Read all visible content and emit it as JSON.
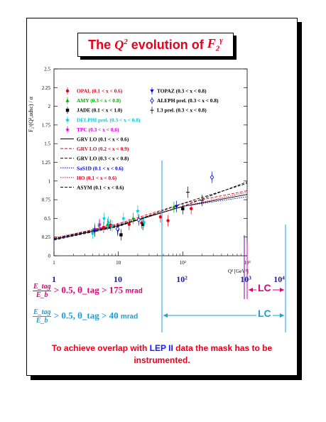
{
  "title": {
    "prefix": "The",
    "q": "Q",
    "q_exp": "2",
    "mid": "evolution of",
    "f": "F",
    "f_sub": "2",
    "f_sup": "γ"
  },
  "axis": {
    "ylabel": "F₂ᵞ(Q²,udsc) / α",
    "xlabel": "Q² [GeV²]"
  },
  "legend": [
    {
      "label": "OPAL (0.1 < x < 0.6)",
      "color": "#e8001c",
      "marker": "circle"
    },
    {
      "label": "AMY (0.3 < x < 0.8)",
      "color": "#00b000",
      "marker": "triangle"
    },
    {
      "label": "JADE (0.1 < x < 1.0)",
      "color": "#000000",
      "marker": "square"
    },
    {
      "label": "DELPHI prel. (0.3 < x < 0.8)",
      "color": "#00c8d8",
      "marker": "star"
    },
    {
      "label": "TPC (0.3 < x < 0.6)",
      "color": "#e000e0",
      "marker": "star"
    },
    {
      "label": "TOPAZ (0.3 < x < 0.8)",
      "color": "#0000cc",
      "marker": "down-triangle"
    },
    {
      "label": "ALEPH prel. (0.3 < x < 0.8)",
      "color": "#0000cc",
      "marker": "diamond"
    },
    {
      "label": "L3 prel. (0.3 < x < 0.8)",
      "color": "#000000",
      "marker": "cross"
    },
    {
      "label": "GRV LO (0.1 < x < 0.6)",
      "color": "#000000",
      "line": "solid"
    },
    {
      "label": "GRV LO (0.2 < x < 0.9)",
      "color": "#e8001c",
      "line": "dashed"
    },
    {
      "label": "GRV LO (0.3 < x < 0.8)",
      "color": "#000000",
      "line": "dashed"
    },
    {
      "label": "SaS1D (0.1 < x < 0.6)",
      "color": "#0000cc",
      "line": "dotted"
    },
    {
      "label": "HO (0.1 < x < 0.6)",
      "color": "#e8001c",
      "line": "dotted"
    },
    {
      "label": "ASYM (0.1 < x < 0.6)",
      "color": "#000000",
      "line": "dashed"
    }
  ],
  "chart_data": {
    "type": "scatter",
    "x_scale": "log",
    "xlim": [
      1,
      1000
    ],
    "ylim": [
      0,
      2.5
    ],
    "x_ticks": [
      "1",
      "10",
      "10²",
      "10³"
    ],
    "y_ticks": [
      "0",
      "0.25",
      "0.5",
      "0.75",
      "1",
      "1.25",
      "1.5",
      "1.75",
      "2",
      "2.25",
      "2.5"
    ],
    "series": [
      {
        "name": "OPAL (0.1 < x < 0.6)",
        "color": "#e8001c",
        "points": [
          [
            5.9,
            0.38
          ],
          [
            7.5,
            0.41
          ],
          [
            14.7,
            0.42
          ],
          [
            23,
            0.44
          ],
          [
            45,
            0.52
          ],
          [
            59,
            0.47
          ],
          [
            135,
            0.63
          ]
        ]
      },
      {
        "name": "AMY (0.3 < x < 0.8)",
        "color": "#00b000",
        "points": [
          [
            6.8,
            0.42
          ],
          [
            17,
            0.5
          ],
          [
            73,
            0.65
          ]
        ]
      },
      {
        "name": "JADE (0.1 < x < 1.0)",
        "color": "#000000",
        "points": [
          [
            11,
            0.28
          ],
          [
            24,
            0.42
          ],
          [
            100,
            0.63
          ]
        ]
      },
      {
        "name": "DELPHI prel. (0.3 < x < 0.8)",
        "color": "#00c8d8",
        "points": [
          [
            4,
            0.3
          ],
          [
            5,
            0.4
          ],
          [
            6,
            0.5
          ],
          [
            7,
            0.45
          ],
          [
            8,
            0.4
          ],
          [
            12,
            0.5
          ],
          [
            20,
            0.6
          ],
          [
            25,
            0.45
          ]
        ]
      },
      {
        "name": "TPC (0.3 < x < 0.6)",
        "color": "#e000e0",
        "points": [
          [
            4.3,
            0.36
          ],
          [
            5.1,
            0.42
          ]
        ]
      },
      {
        "name": "TOPAZ (0.3 < x < 0.8)",
        "color": "#0000cc",
        "points": [
          [
            4.3,
            0.33
          ],
          [
            9.8,
            0.34
          ],
          [
            80,
            0.66
          ]
        ]
      },
      {
        "name": "ALEPH prel. (0.3 < x < 0.8)",
        "color": "#0000cc",
        "points": [
          [
            9.7,
            0.36
          ],
          [
            20.7,
            0.48
          ],
          [
            284,
            1.05
          ]
        ]
      },
      {
        "name": "L3 prel. (0.3 < x < 0.8)",
        "color": "#000000",
        "points": [
          [
            120,
            0.85
          ],
          [
            200,
            0.74
          ]
        ]
      }
    ],
    "curves": [
      {
        "name": "GRV LO (0.1 < x < 0.6)",
        "color": "#000000",
        "points": [
          [
            1,
            0.22
          ],
          [
            10,
            0.4
          ],
          [
            100,
            0.66
          ],
          [
            1000,
            0.82
          ]
        ]
      },
      {
        "name": "GRV LO (0.2 < x < 0.9)",
        "color": "#e8001c",
        "points": [
          [
            1,
            0.23
          ],
          [
            10,
            0.43
          ],
          [
            100,
            0.7
          ],
          [
            1000,
            0.87
          ]
        ]
      },
      {
        "name": "GRV LO (0.3 < x < 0.8)",
        "color": "#000000",
        "points": [
          [
            1,
            0.21
          ],
          [
            10,
            0.39
          ],
          [
            100,
            0.7
          ],
          [
            1000,
            0.97
          ]
        ]
      },
      {
        "name": "SaS1D (0.1 < x < 0.6)",
        "color": "#0000cc",
        "points": [
          [
            1,
            0.22
          ],
          [
            10,
            0.41
          ],
          [
            100,
            0.66
          ],
          [
            1000,
            0.79
          ]
        ]
      },
      {
        "name": "HO (0.1 < x < 0.6)",
        "color": "#e8001c",
        "points": [
          [
            1,
            0.24
          ],
          [
            10,
            0.42
          ],
          [
            100,
            0.66
          ],
          [
            1000,
            0.85
          ]
        ]
      },
      {
        "name": "ASYM (0.1 < x < 0.6)",
        "color": "#000000",
        "points": [
          [
            1,
            0.23
          ],
          [
            10,
            0.41
          ],
          [
            100,
            0.66
          ],
          [
            1000,
            0.99
          ]
        ]
      }
    ]
  },
  "scale": {
    "ticks": [
      "1",
      "10",
      "10²",
      "10³",
      "10⁴"
    ]
  },
  "cuts": [
    {
      "frac_num": "E_tag",
      "frac_den": "E_b",
      "rest": " > 0.5, θ_tag > 175 ",
      "unit": "mrad",
      "color": "#e0007a",
      "lc": "LC",
      "lc_color": "#e0007a"
    },
    {
      "frac_num": "E_tag",
      "frac_den": "E_b",
      "rest": " > 0.5, θ_tag > 40 ",
      "unit": "mrad",
      "color": "#1a9fd8",
      "lc": "LC",
      "lc_color": "#1a9fd8"
    }
  ],
  "note": {
    "before": "To achieve overlap with ",
    "highlight": "LEP II",
    "after": " data the mask has to be instrumented."
  }
}
